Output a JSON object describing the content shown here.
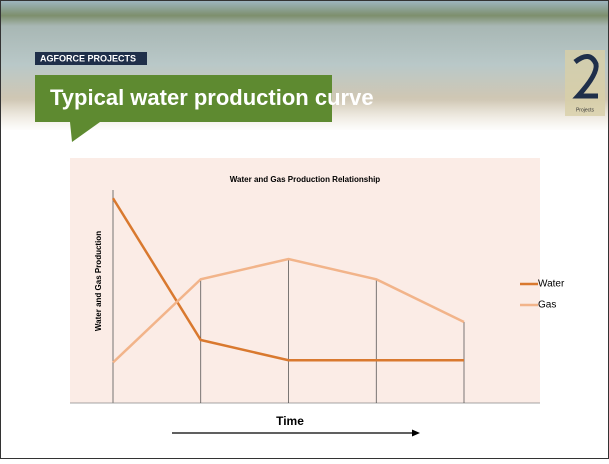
{
  "header": {
    "tag": "AGFORCE PROJECTS",
    "title": "Typical water production curve",
    "logo_text": "Projects"
  },
  "chart_data": {
    "type": "line",
    "title": "Water and Gas Production Relationship",
    "x_label": "Time",
    "y_label": "Water and Gas Production",
    "categories": [
      null,
      null,
      null,
      null,
      null
    ],
    "series": [
      {
        "name": "Water",
        "color": "#d9792f",
        "values": [
          9.1,
          2.8,
          1.9,
          1.9,
          1.9
        ]
      },
      {
        "name": "Gas",
        "color": "#f2b48a",
        "values": [
          1.8,
          5.5,
          6.4,
          5.5,
          3.6
        ]
      }
    ],
    "ylim": [
      0,
      10
    ],
    "legend": "right",
    "drop_lines": true
  }
}
